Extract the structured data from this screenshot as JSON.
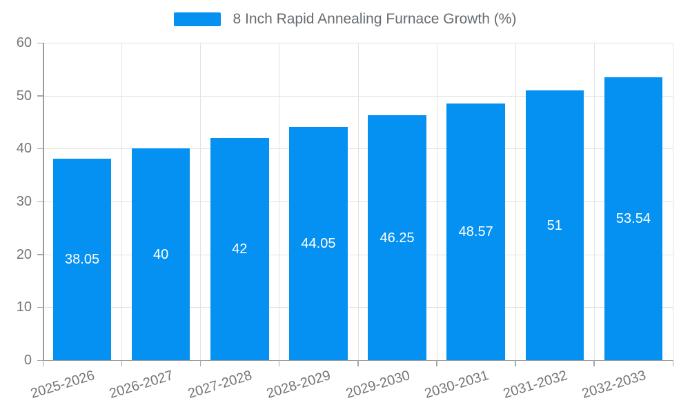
{
  "chart_data": {
    "type": "bar",
    "title": "8 Inch Rapid Annealing Furnace Growth (%)",
    "categories": [
      "2025-2026",
      "2026-2027",
      "2027-2028",
      "2028-2029",
      "2029-2030",
      "2030-2031",
      "2031-2032",
      "2032-2033"
    ],
    "values": [
      38.05,
      40,
      42,
      44.05,
      46.25,
      48.57,
      51,
      53.54
    ],
    "value_labels": [
      "38.05",
      "40",
      "42",
      "44.05",
      "46.25",
      "48.57",
      "51",
      "53.54"
    ],
    "xlabel": "",
    "ylabel": "",
    "ylim": [
      0,
      60
    ],
    "yticks": [
      0,
      10,
      20,
      30,
      40,
      50,
      60
    ],
    "grid": true,
    "legend_position": "top-center",
    "colors": {
      "bar": "#0591f1",
      "value_label": "#ffffff",
      "axis_text": "#757575",
      "legend_text": "#666b70",
      "grid_line": "#e2e2e2",
      "axis_line": "#9b9b9b",
      "tick_mark": "#a6a6a6",
      "background": "#ffffff"
    }
  }
}
